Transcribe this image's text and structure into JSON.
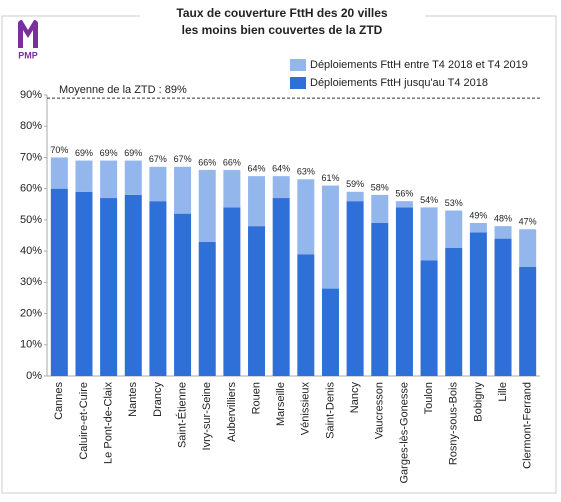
{
  "logo": {
    "text": "PMP"
  },
  "chart_data": {
    "type": "stacked-bar",
    "title_lines": [
      "Taux de couverture FttH des 20 villes",
      "les moins bien couvertes de la ZTD"
    ],
    "categories": [
      "Cannes",
      "Caluire-et-Cuire",
      "Le Pont-de-Claix",
      "Nantes",
      "Drancy",
      "Saint-Étienne",
      "Ivry-sur-Seine",
      "Aubervilliers",
      "Rouen",
      "Marseille",
      "Vénissieux",
      "Saint-Denis",
      "Nancy",
      "Vaucresson",
      "Garges-lès-Gonesse",
      "Toulon",
      "Rosny-sous-Bois",
      "Bobigny",
      "Lille",
      "Clermont-Ferrand"
    ],
    "series": [
      {
        "name": "Déploiements FttH jusqu'au T4 2018",
        "color": "#2f6fd8",
        "values": [
          60,
          59,
          57,
          58,
          56,
          52,
          43,
          54,
          48,
          57,
          39,
          28,
          56,
          49,
          54,
          37,
          41,
          46,
          44,
          35
        ]
      },
      {
        "name": "Déploiements FttH entre T4 2018 et T4 2019",
        "color": "#93b6ec",
        "values": [
          10,
          10,
          12,
          11,
          11,
          15,
          23,
          12,
          16,
          7,
          24,
          33,
          3,
          9,
          2,
          17,
          12,
          3,
          4,
          12
        ]
      }
    ],
    "totals": [
      70,
      69,
      69,
      69,
      67,
      67,
      66,
      66,
      64,
      64,
      63,
      61,
      59,
      58,
      56,
      54,
      53,
      49,
      48,
      47
    ],
    "total_labels": [
      "70%",
      "69%",
      "69%",
      "69%",
      "67%",
      "67%",
      "66%",
      "66%",
      "64%",
      "64%",
      "63%",
      "61%",
      "59%",
      "58%",
      "56%",
      "54%",
      "53%",
      "49%",
      "48%",
      "47%"
    ],
    "reference": {
      "value": 89,
      "label": "Moyenne de la ZTD : 89%"
    },
    "ylim": [
      0,
      90
    ],
    "yticks": [
      {
        "value": 0,
        "label": "0%"
      },
      {
        "value": 10,
        "label": "10%"
      },
      {
        "value": 20,
        "label": "20%"
      },
      {
        "value": 30,
        "label": "30%"
      },
      {
        "value": 40,
        "label": "40%"
      },
      {
        "value": 50,
        "label": "50%"
      },
      {
        "value": 60,
        "label": "60%"
      },
      {
        "value": 70,
        "label": "70%"
      },
      {
        "value": 80,
        "label": "80%"
      },
      {
        "value": 90,
        "label": "90%"
      }
    ],
    "grid": false
  }
}
